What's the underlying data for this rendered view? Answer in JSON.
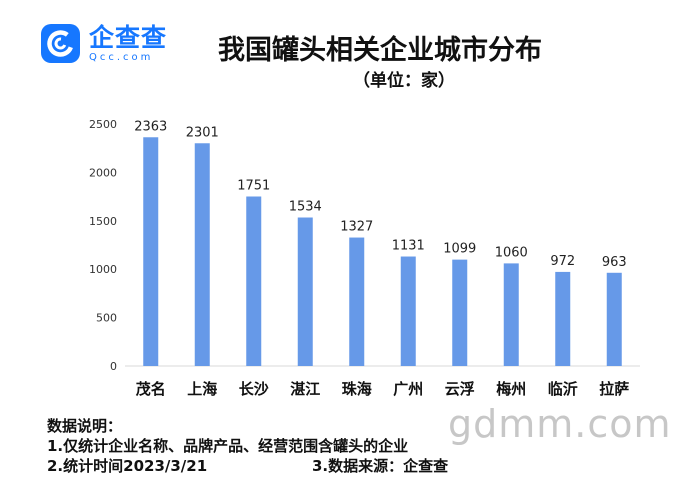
{
  "logo": {
    "name": "企查查",
    "domain": "Qcc.com"
  },
  "header": {
    "title": "我国罐头相关企业城市分布",
    "unit": "（单位：家）"
  },
  "chart_data": {
    "type": "bar",
    "title": "我国罐头相关企业城市分布",
    "subtitle": "（单位：家）",
    "categories": [
      "茂名",
      "上海",
      "长沙",
      "湛江",
      "珠海",
      "广州",
      "云浮",
      "梅州",
      "临沂",
      "拉萨"
    ],
    "values": [
      2363,
      2301,
      1751,
      1534,
      1327,
      1131,
      1099,
      1060,
      972,
      963
    ],
    "ylim": [
      0,
      2500
    ],
    "yticks": [
      0,
      500,
      1000,
      1500,
      2000,
      2500
    ],
    "grid": false,
    "data_labels": true,
    "bar_color": "#6699e8"
  },
  "notes": {
    "heading": "数据说明：",
    "line1": "1.仅统计企业名称、品牌产品、经营范围含罐头的企业",
    "line2": "2.统计时间2023/3/21",
    "source": "3.数据来源：企查查"
  },
  "watermark": "gdmm.com"
}
